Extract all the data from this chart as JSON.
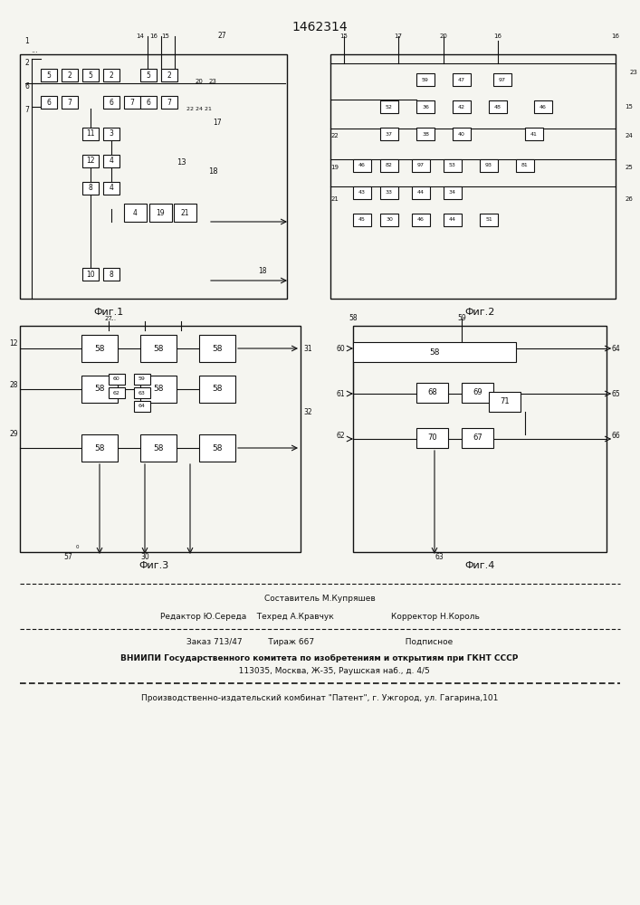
{
  "title": "1462314",
  "background_color": "#f5f5f0",
  "fig1_label": "Фиг.1",
  "fig2_label": "Фиг.2",
  "fig3_label": "Фиг.3",
  "fig4_label": "Фиг.4",
  "footer_lines": [
    "Составитель М.Купряшев",
    "Редактор Ю.Середа    Техред А.Кравчук                      Корректор Н.Король",
    "Заказ 713/47          Тираж 667                                   Подписное",
    "ВНИИПИ Государственного комитета по изобретениям и открытиям при ГКНТ СССР",
    "           113035, Москва, Ж-35, Раушская наб., д. 4/5",
    "Производственно-издательский комбинат \"Патент\", г. Ужгород, ул. Гагарина,101"
  ],
  "line_color": "#111111",
  "box_color": "#ffffff",
  "box_edge": "#111111"
}
